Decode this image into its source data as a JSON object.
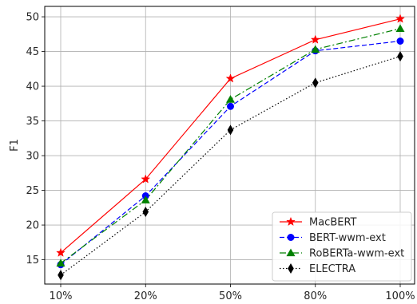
{
  "chart_data": {
    "type": "line",
    "categories": [
      "10%",
      "20%",
      "50%",
      "80%",
      "100%"
    ],
    "ylabel": "F1",
    "ylim": [
      11.5,
      51.5
    ],
    "yticks": [
      15,
      20,
      25,
      30,
      35,
      40,
      45,
      50
    ],
    "grid": true,
    "legend_position": "bottom-right",
    "series": [
      {
        "name": "MacBERT",
        "values": [
          16.0,
          26.6,
          41.1,
          46.7,
          49.7
        ],
        "color": "#ff0000",
        "marker": "star",
        "dash": ""
      },
      {
        "name": "BERT-wwm-ext",
        "values": [
          14.3,
          24.2,
          37.1,
          45.1,
          46.5
        ],
        "color": "#0000ff",
        "marker": "circle",
        "dash": "6,3"
      },
      {
        "name": "RoBERTa-wwm-ext",
        "values": [
          14.5,
          23.6,
          38.1,
          45.3,
          48.3
        ],
        "color": "#008000",
        "marker": "triangle",
        "dash": "8,3,2,3"
      },
      {
        "name": "ELECTRA",
        "values": [
          12.8,
          21.9,
          33.7,
          40.5,
          44.3
        ],
        "color": "#000000",
        "marker": "diamond",
        "dash": "1.5,2.5"
      }
    ]
  }
}
